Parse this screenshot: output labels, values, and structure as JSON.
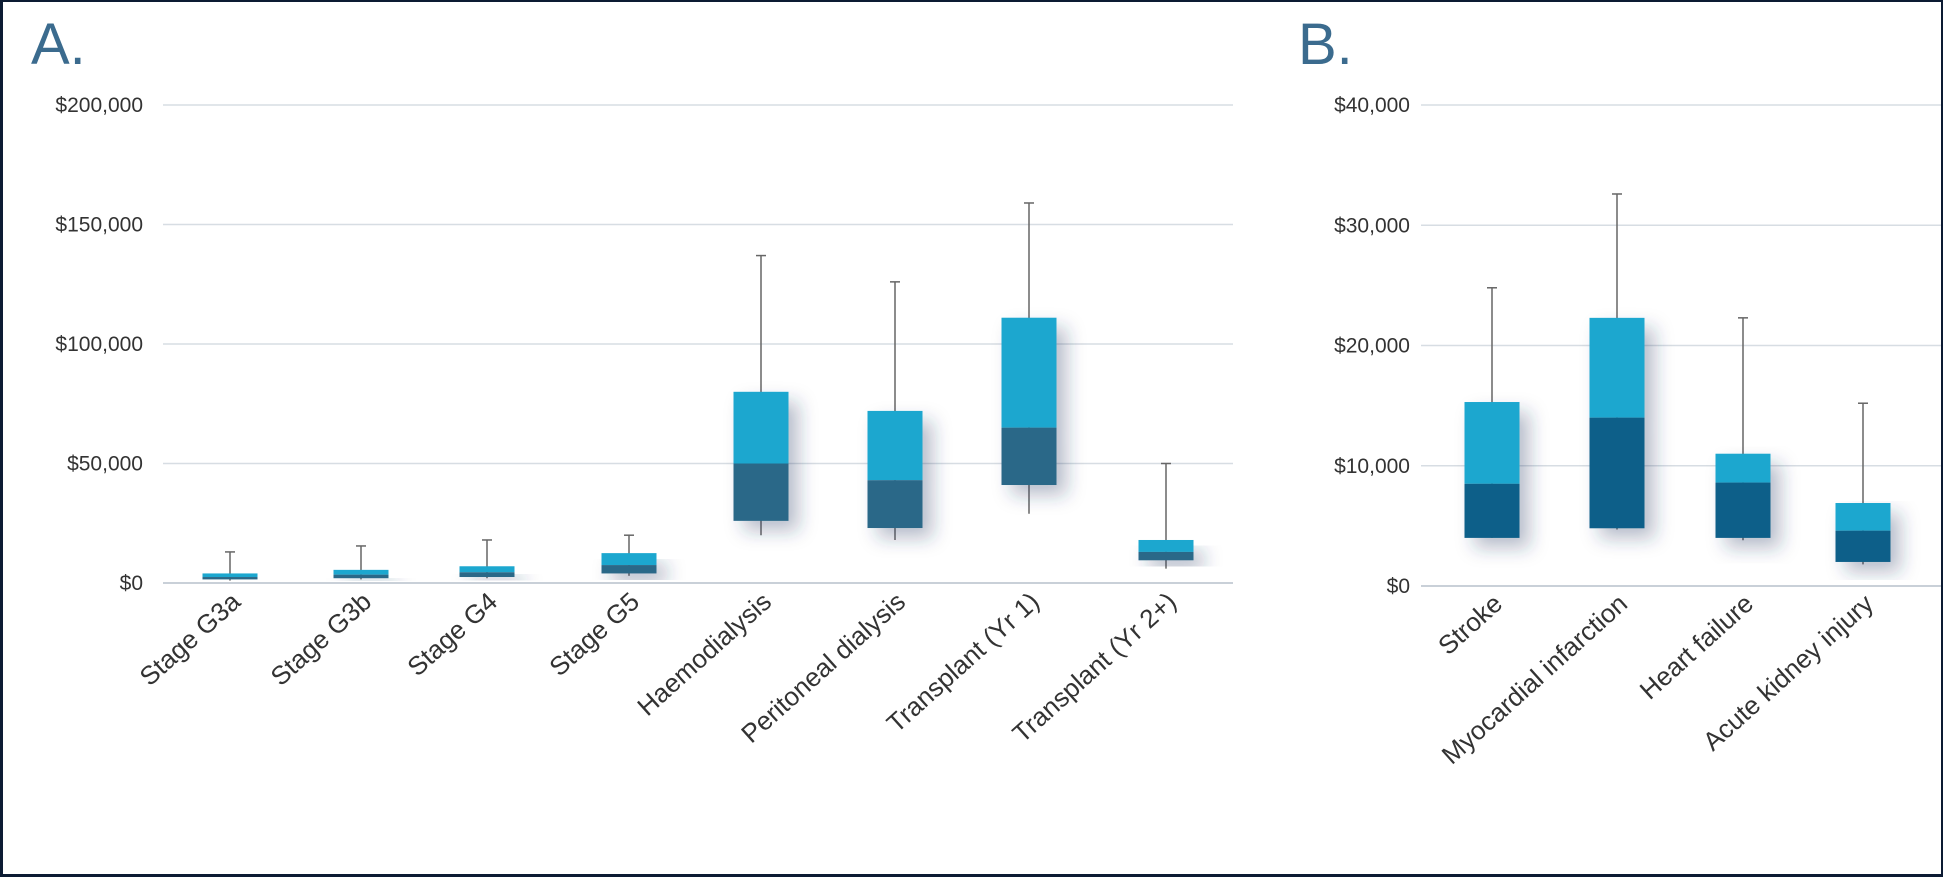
{
  "colors": {
    "upper_box": "#1aa7cf",
    "lower_box": "#2a6788",
    "lower_box_b": "#0f5f89",
    "whisker": "#666666",
    "grid": "#d7dde3",
    "panel_letter": "#3b6b8e"
  },
  "chart_data": [
    {
      "panel": "A.",
      "type": "box",
      "title": "",
      "xlabel": "",
      "ylabel": "",
      "ylim": [
        0,
        200000
      ],
      "y_ticks": [
        0,
        50000,
        100000,
        150000,
        200000
      ],
      "y_tick_labels": [
        "$0",
        "$50,000",
        "$100,000",
        "$150,000",
        "$200,000"
      ],
      "grid": true,
      "categories": [
        "Stage G3a",
        "Stage G3b",
        "Stage G4",
        "Stage G5",
        "Haemodialysis",
        "Peritoneal dialysis",
        "Transplant (Yr 1)",
        "Transplant (Yr 2+)"
      ],
      "boxes": [
        {
          "min": 1000,
          "q1": 1500,
          "median": 2500,
          "q3": 4000,
          "max": 13000
        },
        {
          "min": 1500,
          "q1": 2000,
          "median": 3500,
          "q3": 5500,
          "max": 15500
        },
        {
          "min": 2000,
          "q1": 2500,
          "median": 4500,
          "q3": 7000,
          "max": 18000
        },
        {
          "min": 3000,
          "q1": 4000,
          "median": 7500,
          "q3": 12500,
          "max": 20000
        },
        {
          "min": 20000,
          "q1": 26000,
          "median": 50000,
          "q3": 80000,
          "max": 137000
        },
        {
          "min": 18000,
          "q1": 23000,
          "median": 43000,
          "q3": 72000,
          "max": 126000
        },
        {
          "min": 29000,
          "q1": 41000,
          "median": 65000,
          "q3": 111000,
          "max": 159000
        },
        {
          "min": 6000,
          "q1": 9500,
          "median": 13000,
          "q3": 18000,
          "max": 50000
        }
      ]
    },
    {
      "panel": "B.",
      "type": "box",
      "title": "",
      "xlabel": "",
      "ylabel": "",
      "ylim": [
        0,
        40000
      ],
      "y_ticks": [
        0,
        10000,
        20000,
        30000,
        40000
      ],
      "y_tick_labels": [
        "$0",
        "$10,000",
        "$20,000",
        "$30,000",
        "$40,000"
      ],
      "grid": true,
      "categories": [
        "Stroke",
        "Myocardial infarction",
        "Heart failure",
        "Acute kidney injury"
      ],
      "boxes": [
        {
          "min": 4000,
          "q1": 4000,
          "median": 8500,
          "q3": 15300,
          "max": 24800
        },
        {
          "min": 4700,
          "q1": 4800,
          "median": 14000,
          "q3": 22300,
          "max": 32600
        },
        {
          "min": 3800,
          "q1": 4000,
          "median": 8600,
          "q3": 11000,
          "max": 22300
        },
        {
          "min": 1800,
          "q1": 2000,
          "median": 4600,
          "q3": 6900,
          "max": 15200
        }
      ]
    }
  ]
}
